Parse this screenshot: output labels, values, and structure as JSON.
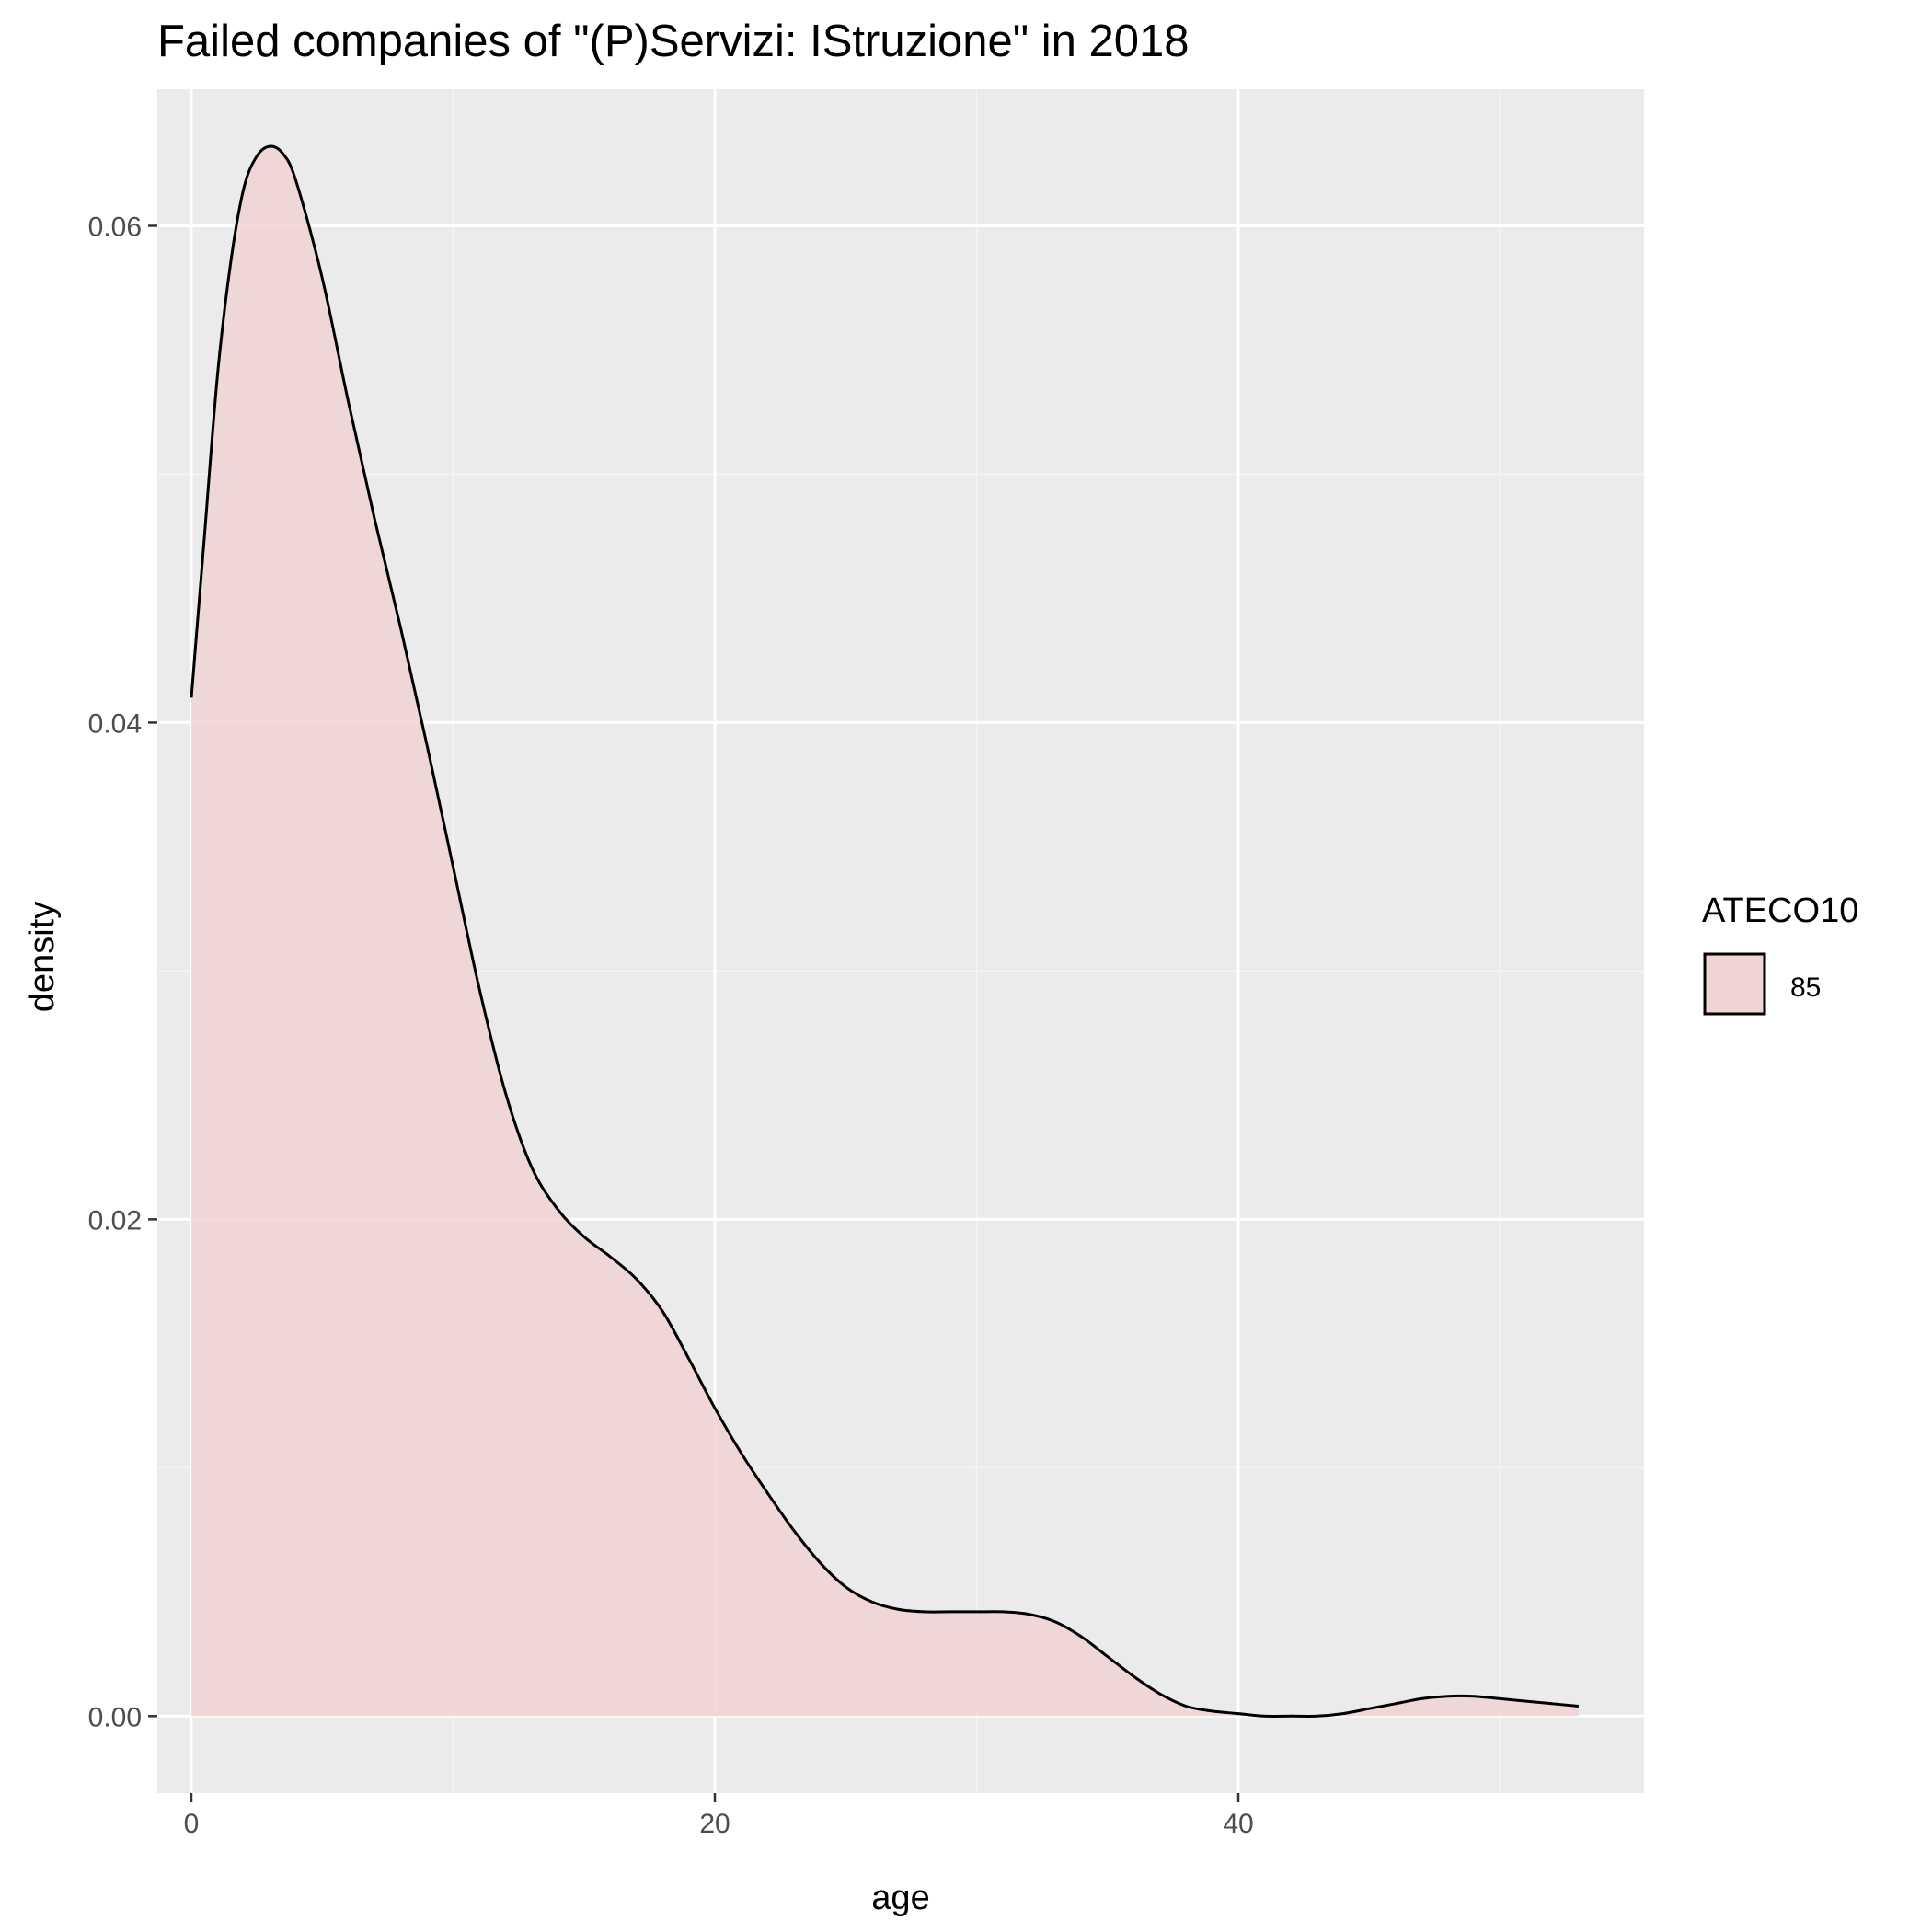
{
  "chart_data": {
    "type": "area",
    "chart_kind": "density",
    "title": "Failed companies of \"(P)Servizi: IStruzione\" in 2018",
    "xlabel": "age",
    "ylabel": "density",
    "xlim": [
      -1.3,
      55.5
    ],
    "ylim": [
      -0.0031,
      0.0655
    ],
    "x_ticks": [
      0,
      20,
      40
    ],
    "x_tick_labels": [
      "0",
      "20",
      "40"
    ],
    "y_ticks": [
      0.0,
      0.02,
      0.04,
      0.06
    ],
    "y_tick_labels": [
      "0.00",
      "0.02",
      "0.04",
      "0.06"
    ],
    "grid": true,
    "legend": {
      "title": "ATECO10",
      "position": "right",
      "entries": [
        {
          "label": "85",
          "fill": "#f0d3d5",
          "stroke": "#000000"
        }
      ]
    },
    "series": [
      {
        "name": "85",
        "fill": "#f0d3d5",
        "stroke": "#000000",
        "x": [
          0,
          0.5,
          1,
          1.5,
          2,
          2.5,
          3,
          3.5,
          4,
          5,
          6,
          7,
          8,
          9,
          10,
          11,
          12,
          13,
          14,
          15,
          16,
          17,
          18,
          19,
          20,
          21,
          22,
          23,
          24,
          25,
          26,
          27,
          28,
          29,
          30,
          31,
          32,
          33,
          34,
          35,
          36,
          37,
          38,
          39,
          40,
          41,
          42,
          43,
          44,
          45,
          46,
          47,
          48,
          49,
          50,
          51,
          52,
          53
        ],
        "y": [
          0.041,
          0.0475,
          0.054,
          0.0585,
          0.0615,
          0.0628,
          0.0632,
          0.0629,
          0.0618,
          0.0579,
          0.0529,
          0.0482,
          0.0438,
          0.0391,
          0.0342,
          0.0293,
          0.0251,
          0.0221,
          0.0204,
          0.0193,
          0.0185,
          0.0176,
          0.0163,
          0.0144,
          0.0124,
          0.0106,
          0.009,
          0.0075,
          0.0062,
          0.0052,
          0.0046,
          0.0043,
          0.0042,
          0.0042,
          0.0042,
          0.0042,
          0.0041,
          0.0038,
          0.0032,
          0.0024,
          0.0016,
          0.0009,
          0.0004,
          0.0002,
          0.0001,
          0.0,
          0.0,
          0.0,
          0.0001,
          0.0003,
          0.0005,
          0.0007,
          0.0008,
          0.0008,
          0.0007,
          0.0006,
          0.0005,
          0.0004
        ]
      }
    ],
    "colors": {
      "panel_background": "#ebebeb",
      "grid_major": "#ffffff",
      "grid_minor": "#f5f5f5",
      "tick_text": "#4d4d4d",
      "tick_mark": "#333333"
    }
  }
}
